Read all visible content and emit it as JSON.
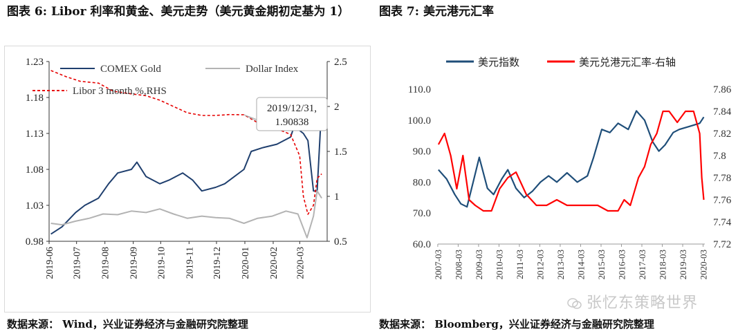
{
  "titles": {
    "left": "图表 6:  Libor 利率和黄金、美元走势（美元黄金期初定基为 1）",
    "right": "图表 7:   美元港元汇率"
  },
  "sources": {
    "left": "数据来源：  Wind，兴业证券经济与金融研究院整理",
    "right": "数据来源：  Bloomberg，兴业证券经济与金融研究院整理"
  },
  "watermark": "张忆东策略世界",
  "colors": {
    "gold": "#1f3f6e",
    "dollar": "#b3b3b3",
    "libor": "#e60000",
    "usdx": "#1f4e79",
    "hkd": "#ff0000"
  },
  "chart_data": [
    {
      "type": "line",
      "title": "",
      "y_left": {
        "ylim": [
          0.98,
          1.23
        ],
        "ticks": [
          "0.98",
          "1.03",
          "1.08",
          "1.13",
          "1.18",
          "1.23"
        ]
      },
      "y_right": {
        "ylim": [
          0.5,
          2.5
        ],
        "ticks": [
          "0.5",
          "1",
          "1.5",
          "2",
          "2.5"
        ]
      },
      "x_ticks": [
        "2019-06",
        "2019-07",
        "2019-08",
        "2019-09",
        "2019-10",
        "2019-11",
        "2019-12",
        "2020-01",
        "2020-02",
        "2020-03"
      ],
      "legend_placement": "top",
      "annotation": {
        "date": "2019/12/31,",
        "value": "1.90838",
        "x": "2019-12-31",
        "y": 1.90838
      },
      "series": [
        {
          "name": "COMEX Gold",
          "axis": "left",
          "style": "solid",
          "x": [
            "2019-06-03",
            "2019-06-15",
            "2019-06-30",
            "2019-07-10",
            "2019-07-25",
            "2019-08-05",
            "2019-08-15",
            "2019-08-30",
            "2019-09-05",
            "2019-09-15",
            "2019-09-30",
            "2019-10-10",
            "2019-10-25",
            "2019-11-05",
            "2019-11-15",
            "2019-11-30",
            "2019-12-10",
            "2019-12-31",
            "2020-01-08",
            "2020-01-20",
            "2020-02-05",
            "2020-02-20",
            "2020-02-24",
            "2020-03-05",
            "2020-03-10",
            "2020-03-16",
            "2020-03-20",
            "2020-03-25"
          ],
          "y": [
            0.99,
            1.0,
            1.02,
            1.03,
            1.04,
            1.06,
            1.075,
            1.08,
            1.09,
            1.07,
            1.06,
            1.065,
            1.075,
            1.065,
            1.05,
            1.055,
            1.06,
            1.08,
            1.105,
            1.11,
            1.115,
            1.125,
            1.14,
            1.13,
            1.12,
            1.05,
            1.05,
            1.17
          ]
        },
        {
          "name": "Dollar Index",
          "axis": "left",
          "style": "solid",
          "x": [
            "2019-06-03",
            "2019-06-15",
            "2019-06-30",
            "2019-07-15",
            "2019-07-30",
            "2019-08-15",
            "2019-08-30",
            "2019-09-15",
            "2019-09-30",
            "2019-10-15",
            "2019-10-30",
            "2019-11-15",
            "2019-11-30",
            "2019-12-15",
            "2019-12-31",
            "2020-01-15",
            "2020-01-31",
            "2020-02-15",
            "2020-02-28",
            "2020-03-09",
            "2020-03-16",
            "2020-03-20",
            "2020-03-25"
          ],
          "y": [
            1.005,
            1.003,
            1.008,
            1.012,
            1.018,
            1.017,
            1.022,
            1.02,
            1.025,
            1.018,
            1.012,
            1.015,
            1.013,
            1.012,
            1.005,
            1.012,
            1.015,
            1.022,
            1.018,
            0.985,
            1.015,
            1.05,
            1.04
          ]
        },
        {
          "name": "Libor 3 month,%,RHS",
          "axis": "right",
          "style": "dashed",
          "x": [
            "2019-06-03",
            "2019-06-20",
            "2019-07-05",
            "2019-07-25",
            "2019-08-10",
            "2019-08-30",
            "2019-09-15",
            "2019-09-30",
            "2019-10-15",
            "2019-10-30",
            "2019-11-15",
            "2019-11-30",
            "2019-12-15",
            "2019-12-31",
            "2020-01-15",
            "2020-01-31",
            "2020-02-20",
            "2020-03-01",
            "2020-03-05",
            "2020-03-10",
            "2020-03-16",
            "2020-03-20",
            "2020-03-25"
          ],
          "y": [
            2.4,
            2.33,
            2.28,
            2.26,
            2.17,
            2.14,
            2.12,
            2.07,
            2.0,
            1.93,
            1.9,
            1.9,
            1.91,
            1.908,
            1.82,
            1.77,
            1.69,
            1.45,
            1.0,
            0.8,
            0.9,
            1.2,
            1.25
          ]
        }
      ]
    },
    {
      "type": "line",
      "title": "",
      "y_left": {
        "ylim": [
          60.0,
          110.0
        ],
        "ticks": [
          "60.0",
          "70.0",
          "80.0",
          "90.0",
          "100.0",
          "110.0"
        ]
      },
      "y_right": {
        "ylim": [
          7.72,
          7.86
        ],
        "ticks": [
          "7.72",
          "7.74",
          "7.76",
          "7.78",
          "7.8",
          "7.82",
          "7.84",
          "7.86"
        ]
      },
      "x_ticks": [
        "2007-03",
        "2008-03",
        "2009-03",
        "2010-03",
        "2011-03",
        "2012-03",
        "2013-03",
        "2014-03",
        "2015-03",
        "2016-03",
        "2017-03",
        "2018-03",
        "2019-03",
        "2020-03"
      ],
      "legend_placement": "top",
      "series": [
        {
          "name": "美元指数",
          "axis": "left",
          "x": [
            2007.2,
            2007.6,
            2008.0,
            2008.3,
            2008.6,
            2008.9,
            2009.2,
            2009.6,
            2009.9,
            2010.3,
            2010.6,
            2011.0,
            2011.4,
            2011.8,
            2012.2,
            2012.6,
            2013.0,
            2013.5,
            2014.0,
            2014.5,
            2014.8,
            2015.2,
            2015.6,
            2016.0,
            2016.5,
            2016.9,
            2017.3,
            2017.7,
            2018.0,
            2018.3,
            2018.7,
            2019.0,
            2019.5,
            2020.0,
            2020.2
          ],
          "y": [
            84,
            81,
            76,
            73,
            72,
            80,
            88,
            78,
            76,
            81,
            84,
            78,
            75,
            77,
            80,
            82,
            80,
            83,
            80,
            82,
            88,
            97,
            96,
            99,
            97,
            103,
            100,
            93,
            90,
            92,
            96,
            97,
            98,
            99,
            101
          ]
        },
        {
          "name": "美元兑港元汇率-右轴",
          "axis": "right",
          "x": [
            2007.2,
            2007.5,
            2007.8,
            2008.1,
            2008.4,
            2008.7,
            2009.0,
            2009.4,
            2009.8,
            2010.2,
            2010.6,
            2011.0,
            2011.5,
            2012.0,
            2012.5,
            2013.0,
            2013.5,
            2014.0,
            2014.5,
            2015.0,
            2015.5,
            2016.0,
            2016.3,
            2016.6,
            2017.0,
            2017.3,
            2017.6,
            2017.9,
            2018.2,
            2018.5,
            2018.9,
            2019.3,
            2019.7,
            2020.0,
            2020.1,
            2020.2
          ],
          "y": [
            7.81,
            7.82,
            7.8,
            7.77,
            7.8,
            7.76,
            7.755,
            7.75,
            7.75,
            7.77,
            7.78,
            7.785,
            7.765,
            7.755,
            7.755,
            7.76,
            7.755,
            7.755,
            7.755,
            7.755,
            7.75,
            7.75,
            7.76,
            7.755,
            7.78,
            7.79,
            7.81,
            7.82,
            7.84,
            7.84,
            7.83,
            7.84,
            7.84,
            7.82,
            7.78,
            7.76
          ]
        }
      ]
    }
  ]
}
